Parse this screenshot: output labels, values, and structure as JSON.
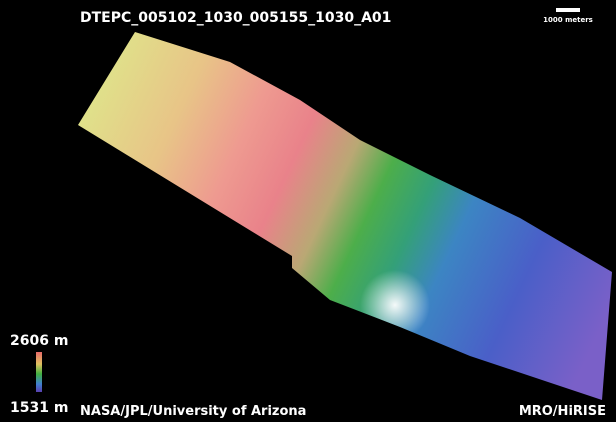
{
  "header": {
    "title": "DTEPC_005102_1030_005155_1030_A01"
  },
  "scale_bar": {
    "label": "1000 meters"
  },
  "legend": {
    "max_label": "2606 m",
    "min_label": "1531 m"
  },
  "footer": {
    "credit_left": "NASA/JPL/University of Arizona",
    "credit_right": "MRO/HiRISE"
  }
}
